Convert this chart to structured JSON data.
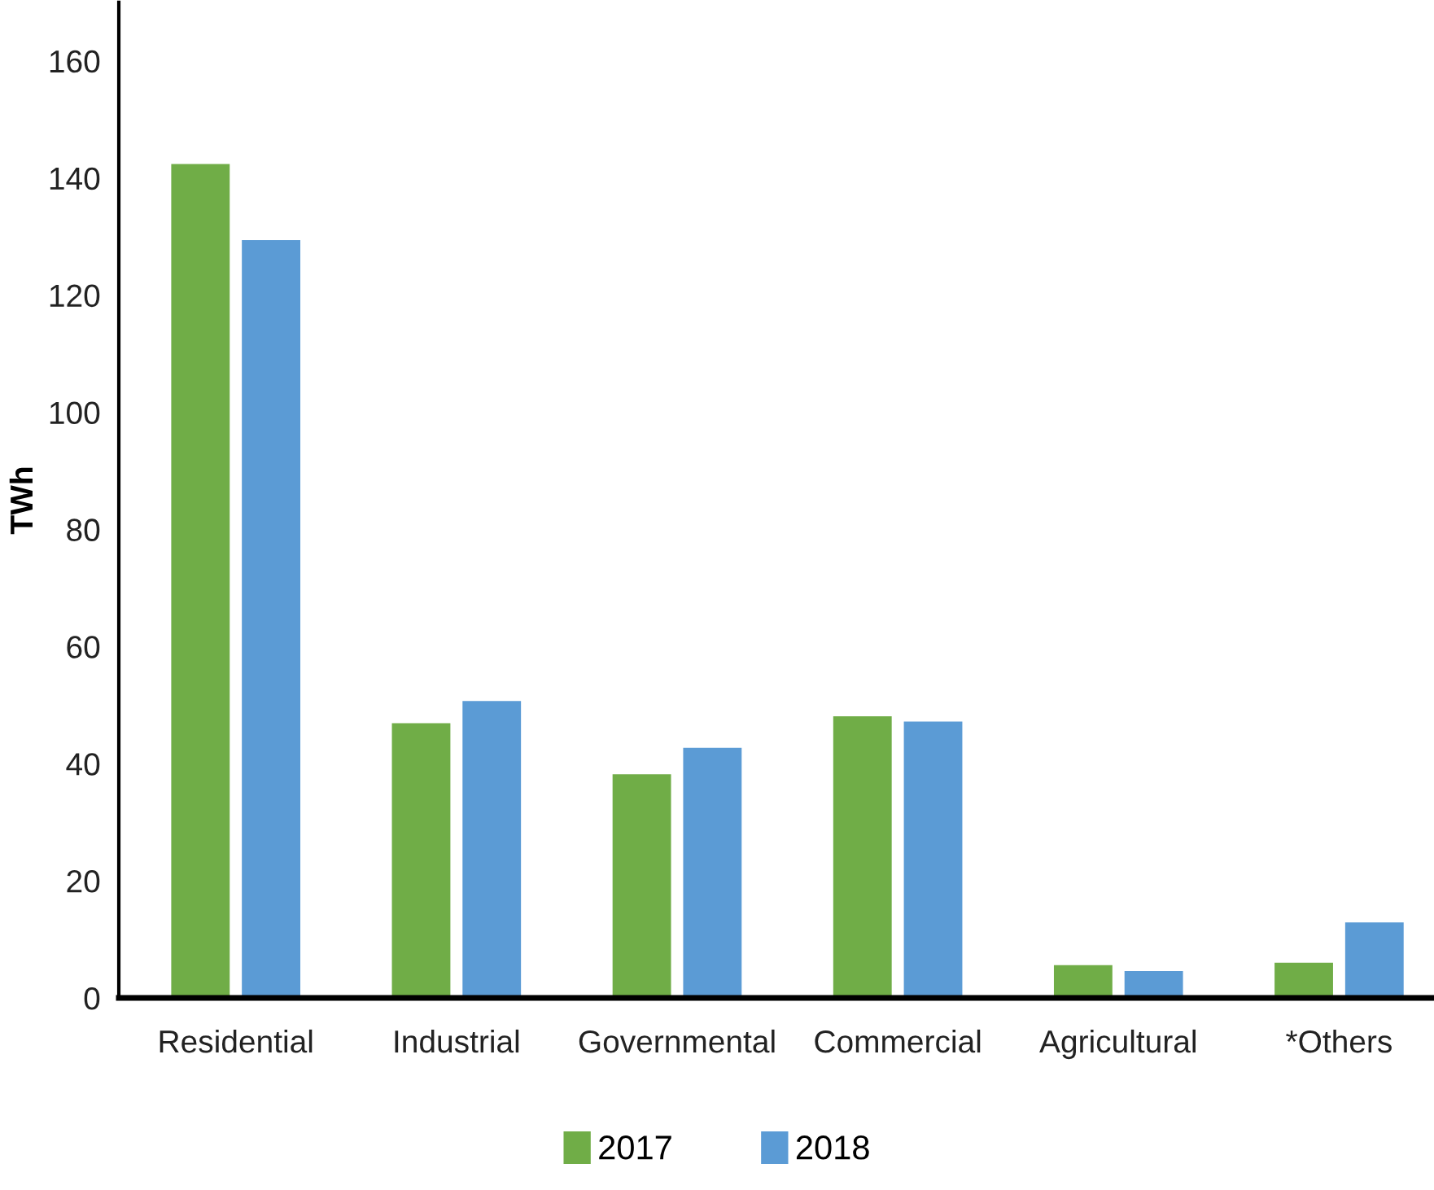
{
  "chart_data": {
    "type": "bar",
    "ylabel": "TWh",
    "categories": [
      "Residential",
      "Industrial",
      "Governmental",
      "Commercial",
      "Agricultural",
      "*Others"
    ],
    "series": [
      {
        "name": "2017",
        "color": "#70ad47",
        "values": [
          142.4,
          46.9,
          38.2,
          48.1,
          5.6,
          6.0
        ]
      },
      {
        "name": "2018",
        "color": "#5b9bd5",
        "values": [
          129.4,
          50.7,
          42.7,
          47.2,
          4.6,
          12.9
        ]
      }
    ],
    "ylim": [
      0,
      170
    ],
    "yticks": [
      0,
      20,
      40,
      60,
      80,
      100,
      120,
      140,
      160
    ],
    "grid": false,
    "legend": "bottom"
  }
}
